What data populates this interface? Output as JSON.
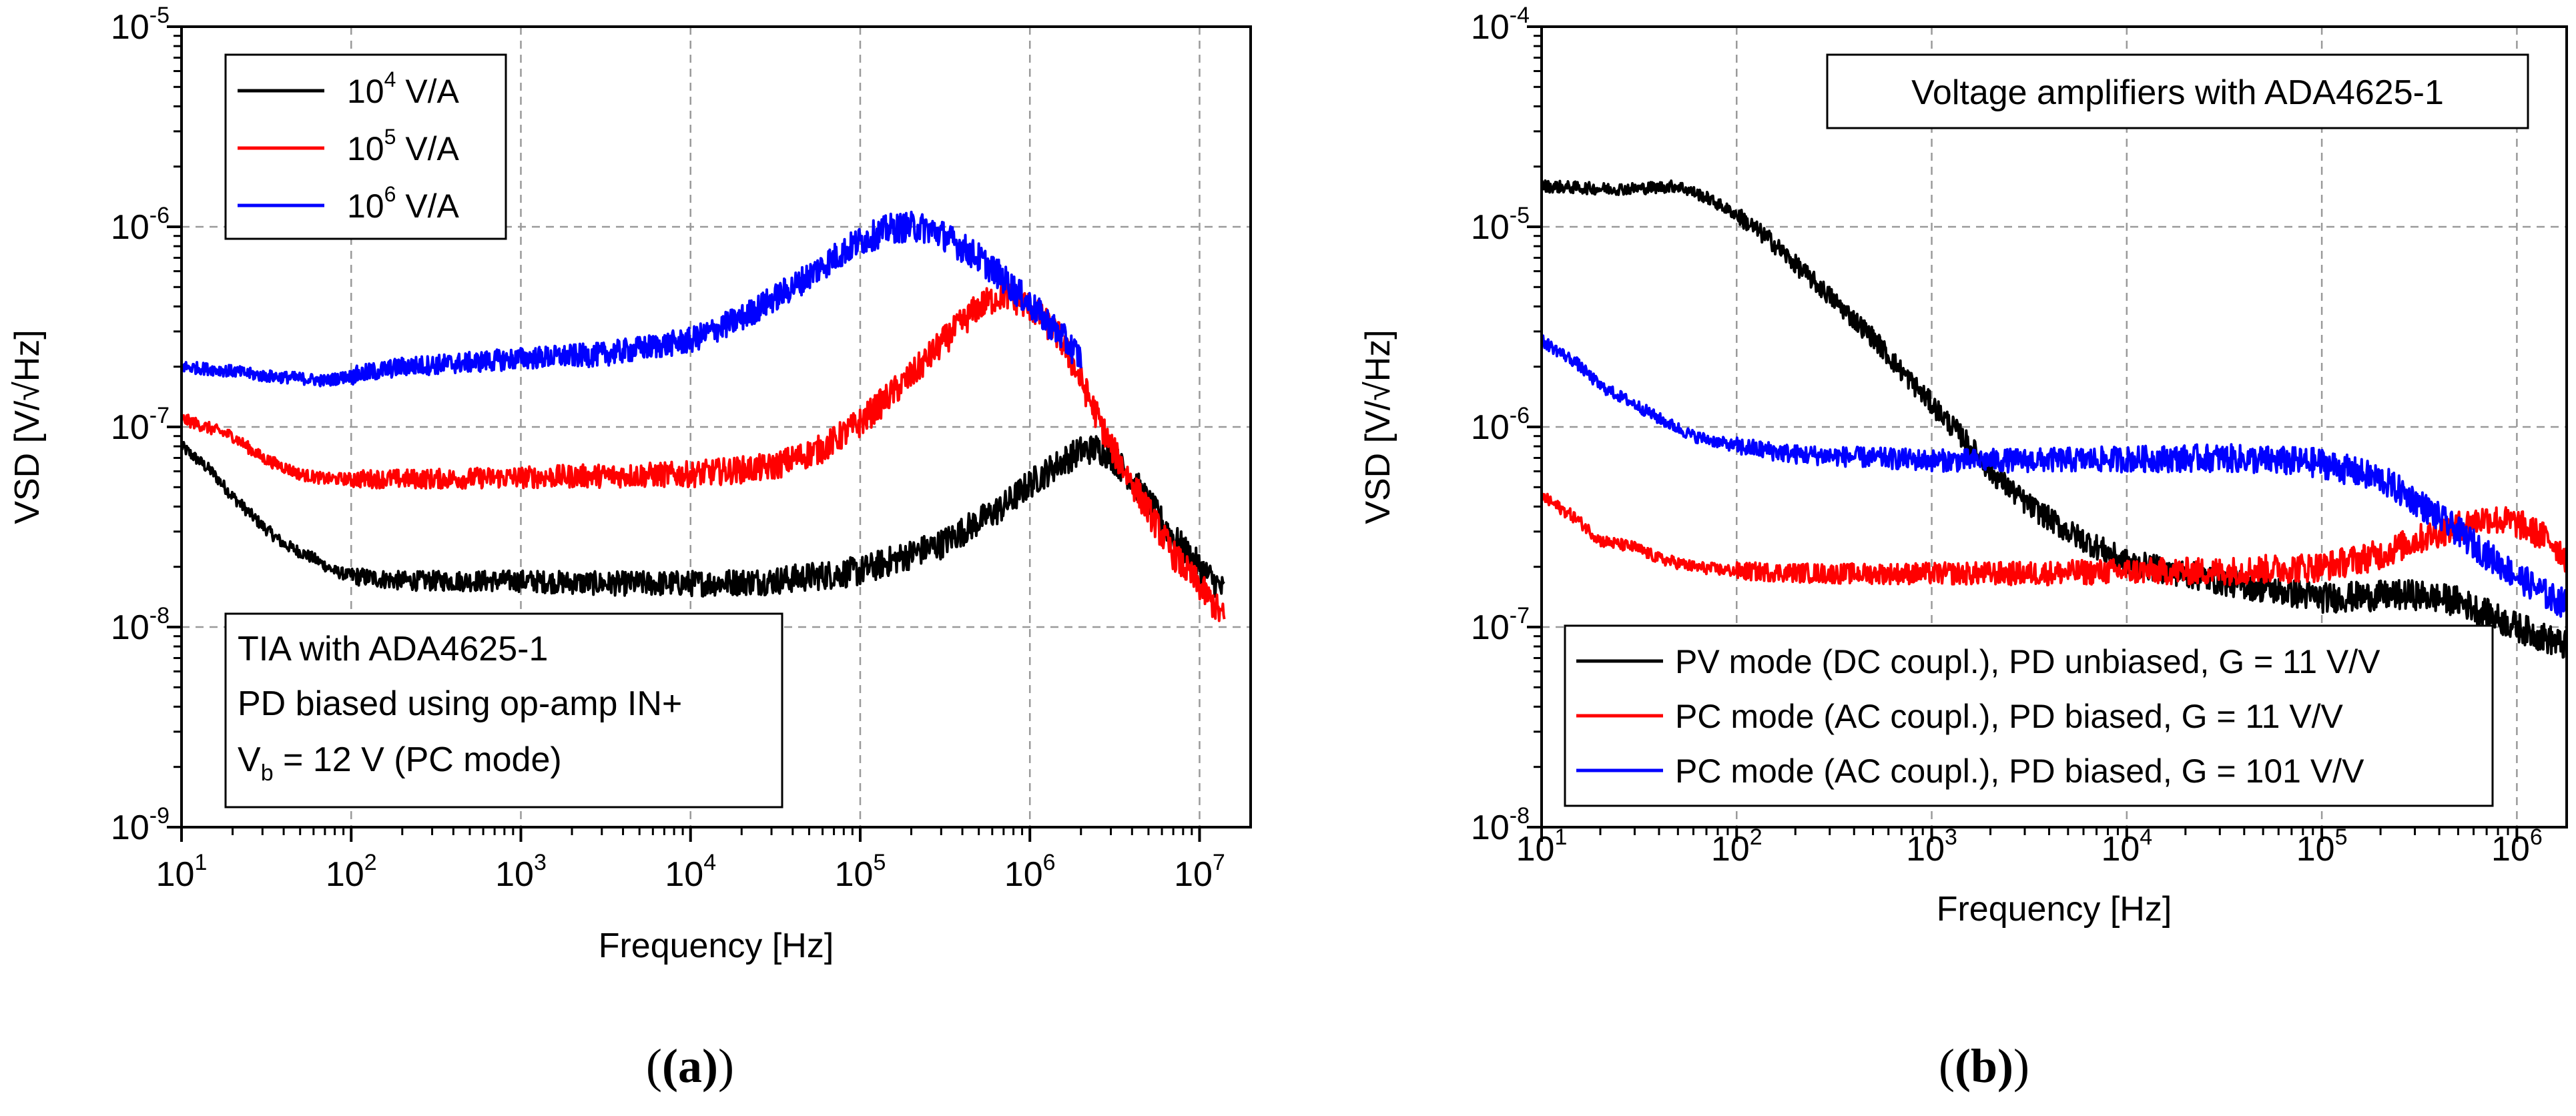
{
  "chart_data": [
    {
      "type": "line",
      "panel_label": "(a)",
      "xlabel": "Frequency [Hz]",
      "ylabel": "VSD [V/√Hz]",
      "xscale": "log",
      "yscale": "log",
      "xlim": [
        10,
        20000000
      ],
      "ylim": [
        1e-09,
        1e-05
      ],
      "grid": true,
      "x_ticks": [
        {
          "base": "10",
          "exp": "1"
        },
        {
          "base": "10",
          "exp": "2"
        },
        {
          "base": "10",
          "exp": "3"
        },
        {
          "base": "10",
          "exp": "4"
        },
        {
          "base": "10",
          "exp": "5"
        },
        {
          "base": "10",
          "exp": "6"
        },
        {
          "base": "10",
          "exp": "7"
        }
      ],
      "y_ticks": [
        {
          "base": "10",
          "exp": "-9"
        },
        {
          "base": "10",
          "exp": "-8"
        },
        {
          "base": "10",
          "exp": "-7"
        },
        {
          "base": "10",
          "exp": "-6"
        },
        {
          "base": "10",
          "exp": "-5"
        }
      ],
      "legend": {
        "placement": "top-left",
        "entries": [
          {
            "pre": "10",
            "sup": "4",
            "post": " V/A",
            "color": "#000000"
          },
          {
            "pre": "10",
            "sup": "5",
            "post": " V/A",
            "color": "#ff0000"
          },
          {
            "pre": "10",
            "sup": "6",
            "post": " V/A",
            "color": "#0000ff"
          }
        ]
      },
      "annotation": {
        "placement": "bottom-left",
        "line1": "TIA with ADA4625-1",
        "line2": "PD biased using op-amp IN+",
        "line3_main": "V",
        "line3_sub": "b",
        "line3_rest": " = 12 V (PC mode)"
      },
      "series": [
        {
          "name": "10^4 V/A",
          "color": "#000000",
          "x": [
            10,
            15,
            20,
            30,
            40,
            60,
            80,
            100,
            200,
            500,
            1000,
            3000,
            10000,
            30000,
            100000,
            300000,
            700000,
            1000000,
            1500000,
            2000000,
            2500000,
            3000000,
            4000000,
            5000000,
            7000000,
            10000000,
            14000000
          ],
          "y": [
            8e-08,
            6e-08,
            4.5e-08,
            3.2e-08,
            2.6e-08,
            2.2e-08,
            1.9e-08,
            1.8e-08,
            1.7e-08,
            1.7e-08,
            1.7e-08,
            1.65e-08,
            1.65e-08,
            1.7e-08,
            1.9e-08,
            2.6e-08,
            4e-08,
            5.2e-08,
            6.6e-08,
            7.6e-08,
            7.8e-08,
            7.2e-08,
            5.5e-08,
            4.2e-08,
            2.8e-08,
            2e-08,
            1.5e-08
          ]
        },
        {
          "name": "10^5 V/A",
          "color": "#ff0000",
          "x": [
            10,
            20,
            30,
            50,
            70,
            100,
            300,
            1000,
            3000,
            10000,
            30000,
            60000,
            100000,
            200000,
            300000,
            500000,
            700000,
            1000000,
            1500000,
            2000000,
            3000000,
            5000000,
            7000000,
            10000000,
            14000000
          ],
          "y": [
            1.1e-07,
            9e-08,
            7e-08,
            5.8e-08,
            5.5e-08,
            5.5e-08,
            5.5e-08,
            5.6e-08,
            5.7e-08,
            5.8e-08,
            6.3e-08,
            7.8e-08,
            1.05e-07,
            1.8e-07,
            2.6e-07,
            4e-07,
            4.6e-07,
            4e-07,
            2.8e-07,
            1.7e-07,
            8e-08,
            3.8e-08,
            2.3e-08,
            1.6e-08,
            1.1e-08
          ]
        },
        {
          "name": "10^6 V/A",
          "color": "#0000ff",
          "x": [
            10,
            20,
            30,
            50,
            70,
            100,
            200,
            500,
            1000,
            3000,
            10000,
            20000,
            40000,
            70000,
            100000,
            150000,
            200000,
            250000,
            300000,
            500000,
            700000,
            1000000,
            1500000,
            2000000
          ],
          "y": [
            2e-07,
            1.9e-07,
            1.8e-07,
            1.75e-07,
            1.7e-07,
            1.8e-07,
            2e-07,
            2.1e-07,
            2.2e-07,
            2.3e-07,
            2.7e-07,
            3.5e-07,
            5e-07,
            7e-07,
            8.5e-07,
            9.8e-07,
            1e-06,
            9.8e-07,
            9.2e-07,
            7e-07,
            5.5e-07,
            4.1e-07,
            2.9e-07,
            2.2e-07
          ]
        }
      ]
    },
    {
      "type": "line",
      "panel_label": "(b)",
      "xlabel": "Frequency [Hz]",
      "ylabel": "VSD [V/√Hz]",
      "xscale": "log",
      "yscale": "log",
      "xlim": [
        10,
        1800000
      ],
      "ylim": [
        1e-08,
        0.0001
      ],
      "grid": true,
      "x_ticks": [
        {
          "base": "10",
          "exp": "1"
        },
        {
          "base": "10",
          "exp": "2"
        },
        {
          "base": "10",
          "exp": "3"
        },
        {
          "base": "10",
          "exp": "4"
        },
        {
          "base": "10",
          "exp": "5"
        },
        {
          "base": "10",
          "exp": "6"
        }
      ],
      "y_ticks": [
        {
          "base": "10",
          "exp": "-8"
        },
        {
          "base": "10",
          "exp": "-7"
        },
        {
          "base": "10",
          "exp": "-6"
        },
        {
          "base": "10",
          "exp": "-5"
        },
        {
          "base": "10",
          "exp": "-4"
        }
      ],
      "title_box": {
        "placement": "top-right",
        "text": "Voltage amplifiers with ADA4625-1"
      },
      "legend": {
        "placement": "bottom-right",
        "entries": [
          {
            "text": "PV mode (DC coupl.), PD unbiased, G = 11 V/V",
            "color": "#000000"
          },
          {
            "text": "PC mode (AC coupl.), PD biased, G = 11 V/V",
            "color": "#ff0000"
          },
          {
            "text": "PC mode (AC coupl.), PD biased, G = 101 V/V",
            "color": "#0000ff"
          }
        ]
      },
      "series": [
        {
          "name": "PV mode (DC coupl.), PD unbiased, G = 11 V/V",
          "color": "#000000",
          "x": [
            10,
            20,
            30,
            50,
            70,
            100,
            150,
            200,
            300,
            500,
            700,
            1000,
            1500,
            2000,
            3000,
            5000,
            10000,
            30000,
            100000,
            300000,
            500000,
            1000000,
            1800000
          ],
          "y": [
            1.6e-05,
            1.55e-05,
            1.55e-05,
            1.6e-05,
            1.4e-05,
            1.15e-05,
            8.5e-06,
            6.5e-06,
            4.5e-06,
            2.8e-06,
            1.9e-06,
            1.3e-06,
            8.5e-07,
            6e-07,
            4.2e-07,
            3e-07,
            2.1e-07,
            1.7e-07,
            1.4e-07,
            1.45e-07,
            1.35e-07,
            1e-07,
            8e-08
          ]
        },
        {
          "name": "PC mode (AC coupl.), PD biased, G = 11 V/V",
          "color": "#ff0000",
          "x": [
            10,
            15,
            20,
            30,
            40,
            60,
            100,
            300,
            1000,
            3000,
            10000,
            30000,
            100000,
            200000,
            300000,
            500000,
            700000,
            1000000,
            1500000,
            1800000
          ],
          "y": [
            4.5e-07,
            3.5e-07,
            2.7e-07,
            2.5e-07,
            2.2e-07,
            2e-07,
            1.9e-07,
            1.85e-07,
            1.85e-07,
            1.85e-07,
            1.9e-07,
            1.9e-07,
            2e-07,
            2.3e-07,
            2.7e-07,
            3.2e-07,
            3.5e-07,
            3.3e-07,
            2.7e-07,
            2.2e-07
          ]
        },
        {
          "name": "PC mode (AC coupl.), PD biased, G = 101 V/V",
          "color": "#0000ff",
          "x": [
            10,
            15,
            20,
            30,
            40,
            60,
            100,
            200,
            500,
            1000,
            3000,
            10000,
            30000,
            100000,
            200000,
            300000,
            500000,
            700000,
            1000000,
            1500000,
            1800000
          ],
          "y": [
            2.7e-06,
            2.1e-06,
            1.6e-06,
            1.3e-06,
            1.1e-06,
            9e-07,
            8e-07,
            7.3e-07,
            7e-07,
            6.8e-07,
            6.8e-07,
            6.9e-07,
            7e-07,
            6.6e-07,
            5.5e-07,
            4.3e-07,
            3e-07,
            2.3e-07,
            1.8e-07,
            1.4e-07,
            1.3e-07
          ]
        }
      ]
    }
  ]
}
